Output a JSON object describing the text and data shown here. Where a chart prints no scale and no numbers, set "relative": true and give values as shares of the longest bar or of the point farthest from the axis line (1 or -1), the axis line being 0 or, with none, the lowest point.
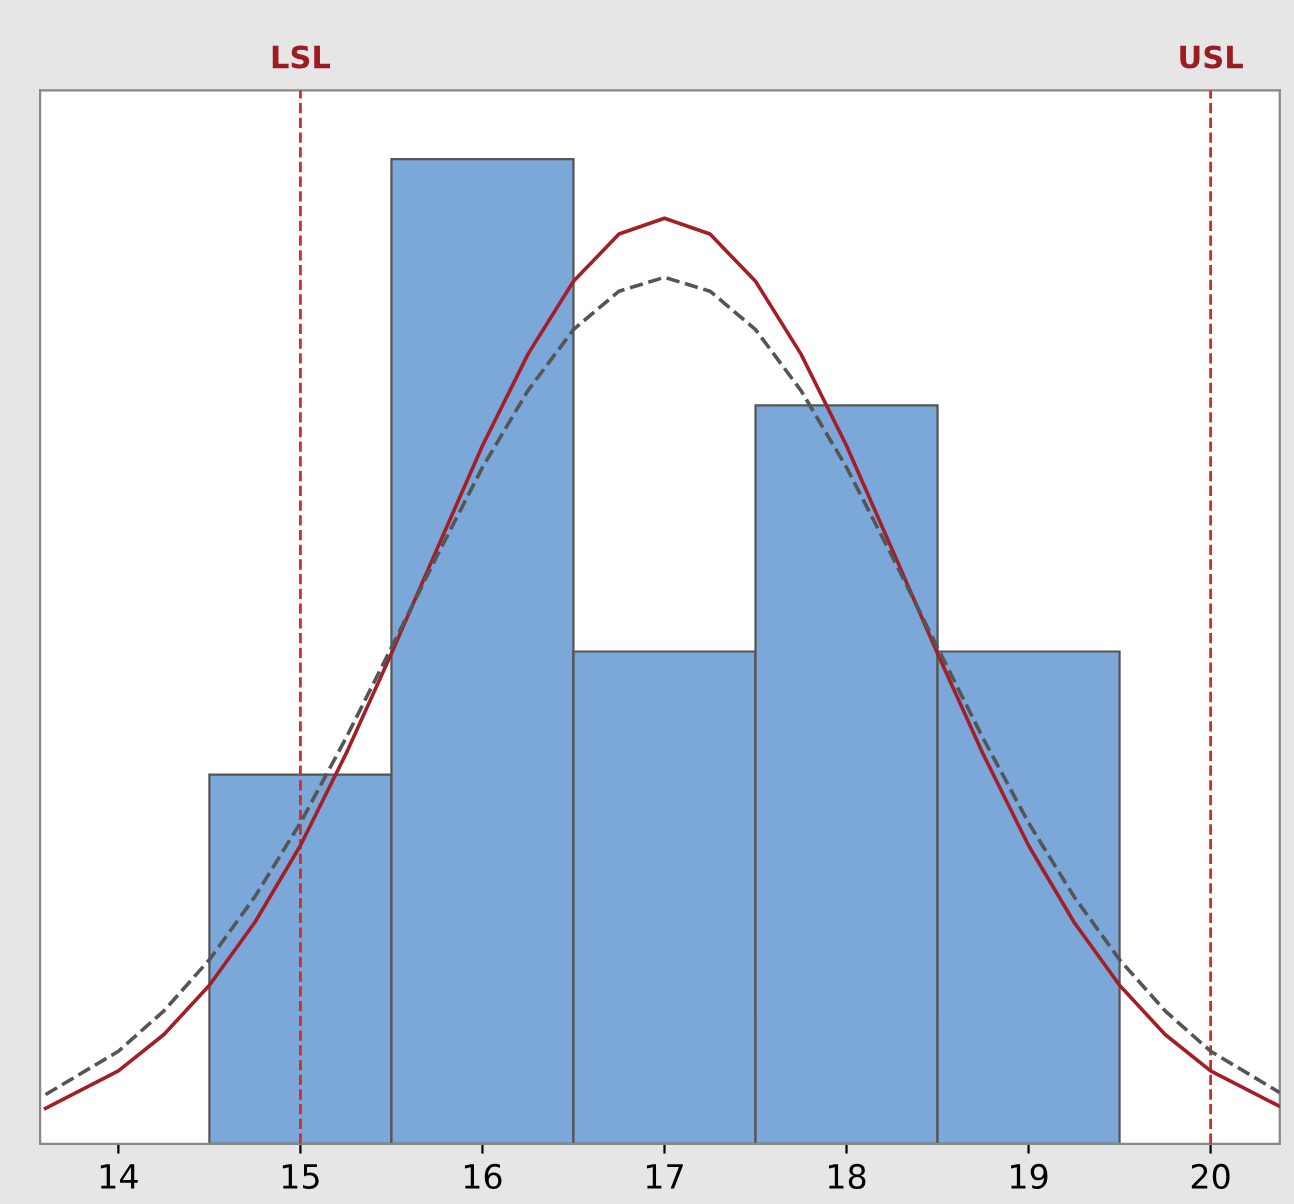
{
  "chart_data": {
    "type": "histogram",
    "relative": true,
    "bins": [
      14.5,
      15.5,
      16.5,
      17.5,
      18.5,
      19.5
    ],
    "values": [
      0.375,
      1,
      0.5,
      0.75,
      0.5
    ],
    "color": "#7ba7d9",
    "series": [
      {
        "type": "line",
        "color": "#a31f28",
        "line_style": "solid",
        "x": [
          13.6,
          14,
          14.25,
          14.5,
          14.75,
          15,
          15.25,
          15.5,
          15.75,
          16,
          16.25,
          16.5,
          16.75,
          17,
          17.25,
          17.5,
          17.75,
          18,
          18.25,
          18.5,
          18.75,
          19,
          19.25,
          19.5,
          19.75,
          20,
          20.38
        ],
        "values": [
          0.036,
          0.074,
          0.111,
          0.161,
          0.225,
          0.303,
          0.396,
          0.498,
          0.604,
          0.709,
          0.802,
          0.876,
          0.924,
          0.94,
          0.924,
          0.876,
          0.802,
          0.709,
          0.604,
          0.498,
          0.396,
          0.303,
          0.225,
          0.161,
          0.111,
          0.074,
          0.038
        ]
      },
      {
        "type": "line",
        "color": "#555555",
        "line_style": "dashed",
        "x": [
          13.6,
          14,
          14.25,
          14.5,
          14.75,
          15,
          15.25,
          15.5,
          15.75,
          16,
          16.25,
          16.5,
          16.75,
          17,
          17.25,
          17.5,
          17.75,
          18,
          18.25,
          18.5,
          18.75,
          19,
          19.25,
          19.5,
          19.75,
          20,
          20.38
        ],
        "values": [
          0.05,
          0.094,
          0.135,
          0.187,
          0.251,
          0.326,
          0.412,
          0.504,
          0.597,
          0.687,
          0.765,
          0.827,
          0.866,
          0.88,
          0.866,
          0.827,
          0.765,
          0.687,
          0.597,
          0.504,
          0.412,
          0.326,
          0.251,
          0.187,
          0.135,
          0.094,
          0.052
        ]
      }
    ],
    "xlim": [
      13.57,
      20.38
    ],
    "xticks": [
      14,
      15,
      16,
      17,
      18,
      19,
      20
    ],
    "ref_lines": [
      {
        "axis": "x",
        "value": 15,
        "label": "LSL",
        "color": "#d42a2a",
        "line_style": "dashed"
      },
      {
        "axis": "x",
        "value": 20,
        "label": "USL",
        "color": "#d42a2a",
        "line_style": "dashed"
      }
    ],
    "grid": false
  }
}
